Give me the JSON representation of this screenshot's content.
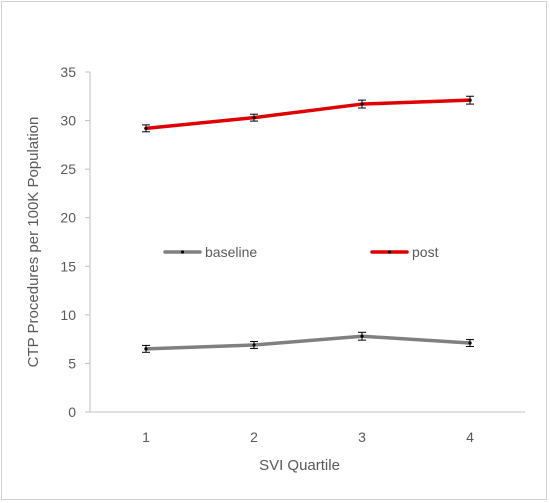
{
  "chart_data": {
    "type": "line",
    "title": "",
    "xlabel": "SVI Quartile",
    "ylabel": "CTP Procedures per 100K Population",
    "categories": [
      "1",
      "2",
      "3",
      "4"
    ],
    "ylim": [
      0,
      35
    ],
    "yticks": [
      "0",
      "5",
      "10",
      "15",
      "20",
      "25",
      "30",
      "35"
    ],
    "grid": false,
    "legend_position": "inside-middle",
    "series": [
      {
        "name": "baseline",
        "color": "#808080",
        "values": [
          6.5,
          6.9,
          7.8,
          7.1
        ],
        "error": [
          0.2,
          0.2,
          0.25,
          0.2
        ]
      },
      {
        "name": "post",
        "color": "#e00000",
        "values": [
          29.2,
          30.3,
          31.7,
          32.1
        ],
        "error": [
          0.2,
          0.2,
          0.25,
          0.25
        ]
      }
    ]
  }
}
